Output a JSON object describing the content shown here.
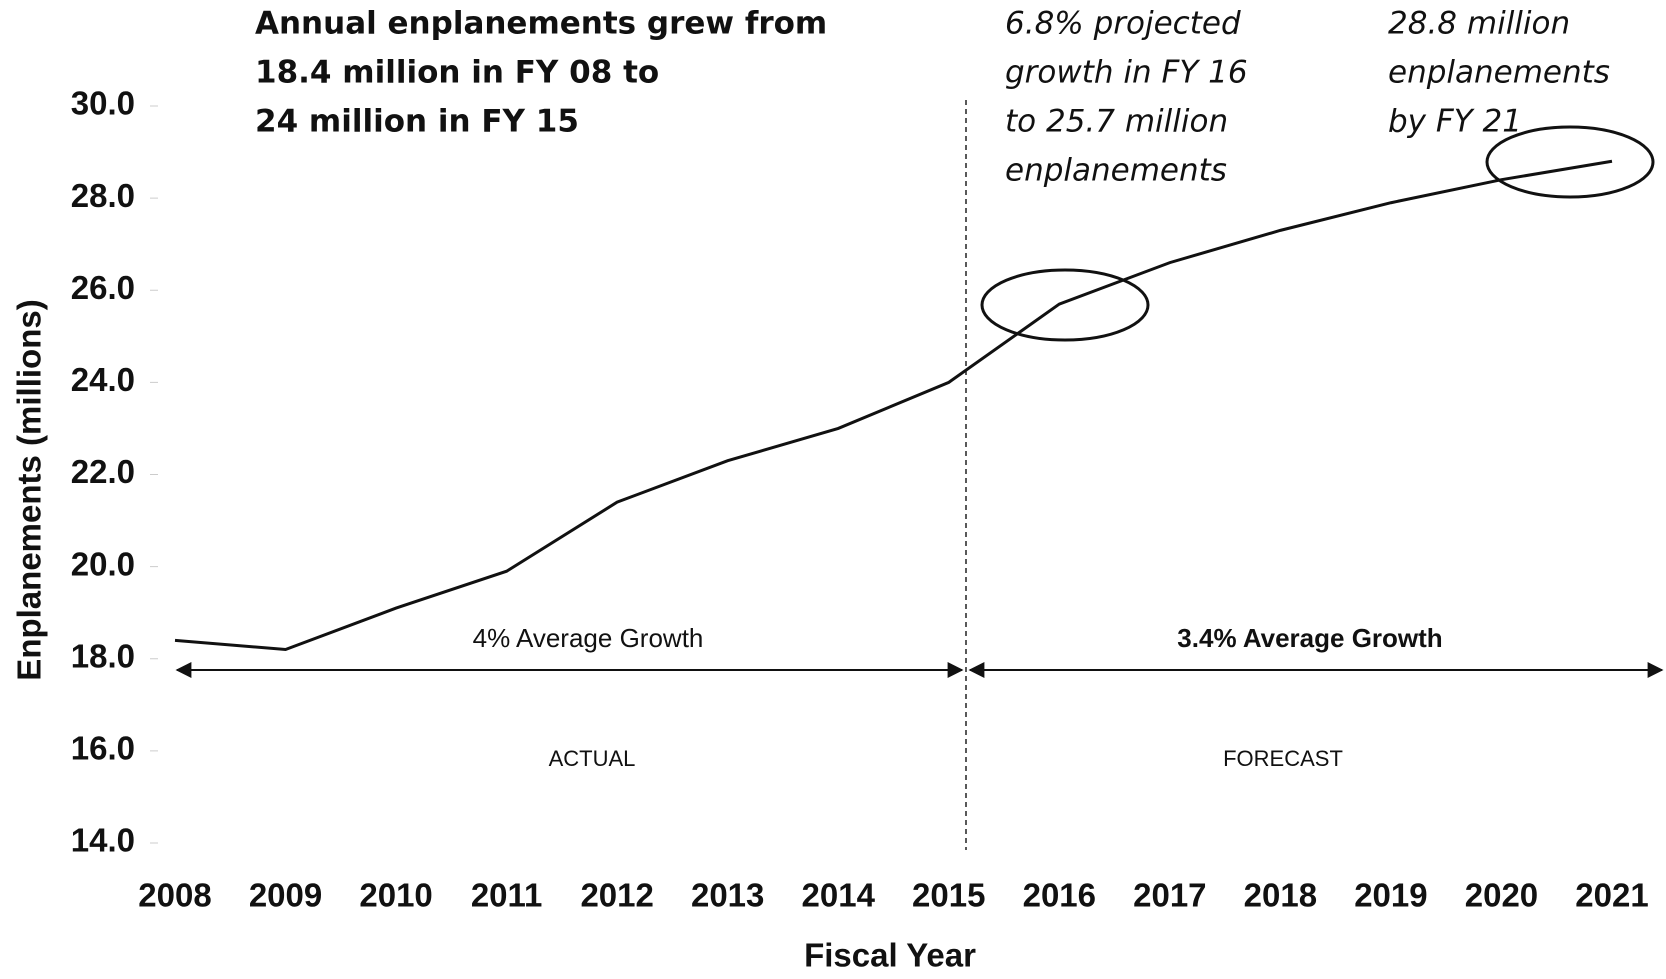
{
  "chart_data": {
    "type": "line",
    "x_label": "Fiscal Year",
    "y_label": "Enplanements (millions)",
    "categories": [
      "2008",
      "2009",
      "2010",
      "2011",
      "2012",
      "2013",
      "2014",
      "2015",
      "2016",
      "2017",
      "2018",
      "2019",
      "2020",
      "2021"
    ],
    "series": [
      {
        "name": "Enplanements",
        "color": "#111111",
        "values": [
          18.4,
          18.2,
          19.1,
          19.9,
          21.4,
          22.3,
          23.0,
          24.0,
          25.7,
          26.6,
          27.3,
          27.9,
          28.4,
          28.8
        ]
      }
    ],
    "ylim": [
      14,
      30
    ],
    "yticks": [
      {
        "value": 14,
        "label": "14.0"
      },
      {
        "value": 16,
        "label": "16.0"
      },
      {
        "value": 18,
        "label": "18.0"
      },
      {
        "value": 20,
        "label": "20.0"
      },
      {
        "value": 22,
        "label": "22.0"
      },
      {
        "value": 24,
        "label": "24.0"
      },
      {
        "value": 26,
        "label": "26.0"
      },
      {
        "value": 28,
        "label": "28.0"
      },
      {
        "value": 30,
        "label": "30.0"
      }
    ],
    "annotations": [
      {
        "lines": [
          "Annual enplanements grew from",
          "18.4 million in FY 08 to",
          "24 million in FY 15"
        ]
      },
      {
        "lines": [
          "6.8% projected",
          "growth in FY 16",
          "to 25.7 million",
          "enplanements"
        ]
      },
      {
        "lines": [
          "28.8 million",
          "enplanements",
          "by FY 21"
        ]
      }
    ],
    "growth_labels": [
      "4% Average Growth",
      "3.4% Average Growth"
    ],
    "period_labels": [
      "ACTUAL",
      "FORECAST"
    ]
  }
}
